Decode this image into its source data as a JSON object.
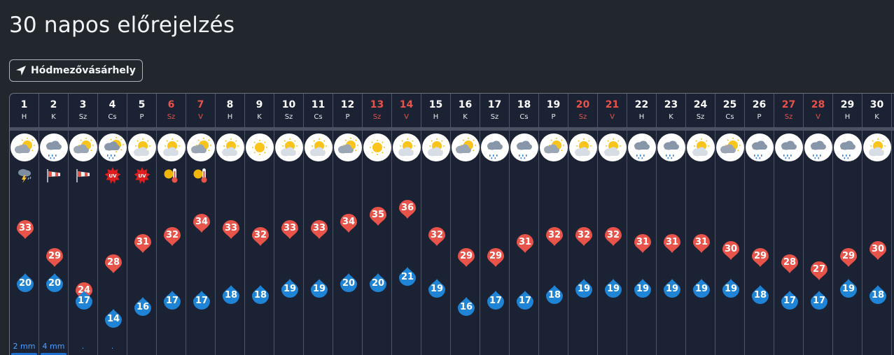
{
  "page": {
    "title": "30 napos előrejelzés"
  },
  "location": {
    "label": "Hódmezővásárhely",
    "icon": "navigation-arrow-icon"
  },
  "colors": {
    "high": "#e8534a",
    "low": "#1f84d6",
    "weekend": "#e8534a",
    "precip": "#4ea1ff"
  },
  "temp_range": {
    "max": 36,
    "min": 14
  },
  "days": [
    {
      "num": "1",
      "dow": "H",
      "weekend": false,
      "icon": "partly-cloudy",
      "warn": "thunderstorm-icon",
      "high": 33,
      "low": 20,
      "precip": "2 mm",
      "bar": 0.4
    },
    {
      "num": "2",
      "dow": "K",
      "weekend": false,
      "icon": "cloud-rain",
      "warn": "wind-icon",
      "high": 29,
      "low": 20,
      "precip": "4 mm",
      "bar": 0.8
    },
    {
      "num": "3",
      "dow": "Sz",
      "weekend": false,
      "icon": "partly-cloudy",
      "warn": "wind-icon",
      "high": 24,
      "low": 17,
      "precip": ".",
      "bar": 0
    },
    {
      "num": "4",
      "dow": "Cs",
      "weekend": false,
      "icon": "cloud-rain-sun",
      "warn": "uv-icon",
      "high": 28,
      "low": 14,
      "precip": ".",
      "bar": 0
    },
    {
      "num": "5",
      "dow": "P",
      "weekend": false,
      "icon": "sun-cloud",
      "warn": "uv-icon",
      "high": 31,
      "low": 16,
      "precip": "",
      "bar": 0
    },
    {
      "num": "6",
      "dow": "Sz",
      "weekend": true,
      "icon": "sun-cloud",
      "warn": "heat-icon",
      "high": 32,
      "low": 17,
      "precip": "",
      "bar": 0
    },
    {
      "num": "7",
      "dow": "V",
      "weekend": true,
      "icon": "partly-cloudy",
      "warn": "heat-icon",
      "high": 34,
      "low": 17,
      "precip": "",
      "bar": 0
    },
    {
      "num": "8",
      "dow": "H",
      "weekend": false,
      "icon": "sun-cloud",
      "warn": "",
      "high": 33,
      "low": 18,
      "precip": "",
      "bar": 0
    },
    {
      "num": "9",
      "dow": "K",
      "weekend": false,
      "icon": "sun",
      "warn": "",
      "high": 32,
      "low": 18,
      "precip": "",
      "bar": 0
    },
    {
      "num": "10",
      "dow": "Sz",
      "weekend": false,
      "icon": "sun-cloud",
      "warn": "",
      "high": 33,
      "low": 19,
      "precip": "",
      "bar": 0
    },
    {
      "num": "11",
      "dow": "Cs",
      "weekend": false,
      "icon": "sun-cloud",
      "warn": "",
      "high": 33,
      "low": 19,
      "precip": "",
      "bar": 0
    },
    {
      "num": "12",
      "dow": "P",
      "weekend": false,
      "icon": "partly-cloudy",
      "warn": "",
      "high": 34,
      "low": 20,
      "precip": "",
      "bar": 0
    },
    {
      "num": "13",
      "dow": "Sz",
      "weekend": true,
      "icon": "sun",
      "warn": "",
      "high": 35,
      "low": 20,
      "precip": "",
      "bar": 0
    },
    {
      "num": "14",
      "dow": "V",
      "weekend": true,
      "icon": "sun-cloud",
      "warn": "",
      "high": 36,
      "low": 21,
      "precip": "",
      "bar": 0
    },
    {
      "num": "15",
      "dow": "H",
      "weekend": false,
      "icon": "sun-cloud",
      "warn": "",
      "high": 32,
      "low": 19,
      "precip": "",
      "bar": 0
    },
    {
      "num": "16",
      "dow": "K",
      "weekend": false,
      "icon": "partly-cloudy",
      "warn": "",
      "high": 29,
      "low": 16,
      "precip": "",
      "bar": 0
    },
    {
      "num": "17",
      "dow": "Sz",
      "weekend": false,
      "icon": "cloud-rain",
      "warn": "",
      "high": 29,
      "low": 17,
      "precip": "",
      "bar": 0
    },
    {
      "num": "18",
      "dow": "Cs",
      "weekend": false,
      "icon": "cloud-rain",
      "warn": "",
      "high": 31,
      "low": 17,
      "precip": "",
      "bar": 0
    },
    {
      "num": "19",
      "dow": "P",
      "weekend": false,
      "icon": "partly-cloudy",
      "warn": "",
      "high": 32,
      "low": 18,
      "precip": "",
      "bar": 0
    },
    {
      "num": "20",
      "dow": "Sz",
      "weekend": true,
      "icon": "sun-cloud",
      "warn": "",
      "high": 32,
      "low": 19,
      "precip": "",
      "bar": 0
    },
    {
      "num": "21",
      "dow": "V",
      "weekend": true,
      "icon": "sun-cloud",
      "warn": "",
      "high": 32,
      "low": 19,
      "precip": "",
      "bar": 0
    },
    {
      "num": "22",
      "dow": "H",
      "weekend": false,
      "icon": "cloud-rain",
      "warn": "",
      "high": 31,
      "low": 19,
      "precip": "",
      "bar": 0
    },
    {
      "num": "23",
      "dow": "K",
      "weekend": false,
      "icon": "cloud-rain",
      "warn": "",
      "high": 31,
      "low": 19,
      "precip": "",
      "bar": 0
    },
    {
      "num": "24",
      "dow": "Sz",
      "weekend": false,
      "icon": "sun-cloud",
      "warn": "",
      "high": 31,
      "low": 19,
      "precip": "",
      "bar": 0
    },
    {
      "num": "25",
      "dow": "Cs",
      "weekend": false,
      "icon": "partly-cloudy",
      "warn": "",
      "high": 30,
      "low": 19,
      "precip": "",
      "bar": 0
    },
    {
      "num": "26",
      "dow": "P",
      "weekend": false,
      "icon": "cloud-rain",
      "warn": "",
      "high": 29,
      "low": 18,
      "precip": "",
      "bar": 0
    },
    {
      "num": "27",
      "dow": "Sz",
      "weekend": true,
      "icon": "cloud-rain",
      "warn": "",
      "high": 28,
      "low": 17,
      "precip": "",
      "bar": 0
    },
    {
      "num": "28",
      "dow": "V",
      "weekend": true,
      "icon": "cloud-rain",
      "warn": "",
      "high": 27,
      "low": 17,
      "precip": "",
      "bar": 0
    },
    {
      "num": "29",
      "dow": "H",
      "weekend": false,
      "icon": "cloud-rain",
      "warn": "",
      "high": 29,
      "low": 19,
      "precip": "",
      "bar": 0
    },
    {
      "num": "30",
      "dow": "K",
      "weekend": false,
      "icon": "sun-cloud",
      "warn": "",
      "high": 30,
      "low": 18,
      "precip": "",
      "bar": 0
    }
  ]
}
